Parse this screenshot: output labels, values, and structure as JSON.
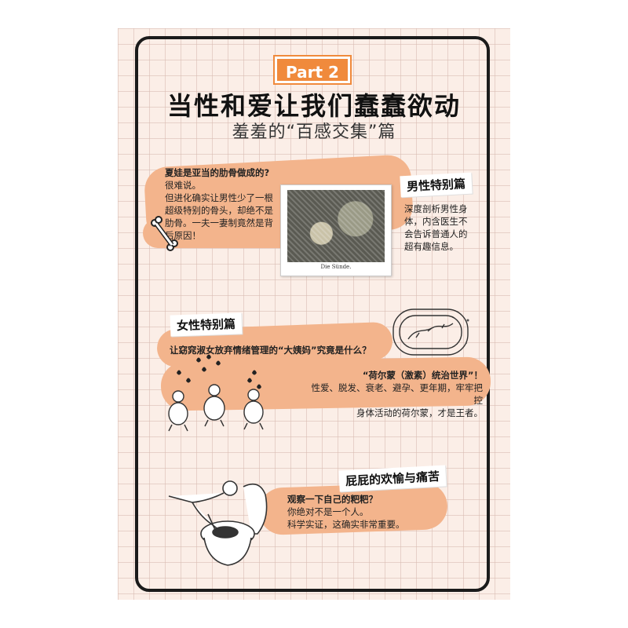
{
  "part_badge": "Part 2",
  "title": "当性和爱让我们蠢蠢欲动",
  "subtitle": "羞羞的“百感交集”篇",
  "section1": {
    "question": "夏娃是亚当的肋骨做成的?",
    "lines": [
      "很难说。",
      "但进化确实让男性少了一根",
      "超级特别的骨头，却绝不是",
      "肋骨。一夫一妻制竟然是背",
      "后原因！"
    ],
    "tag": "男性特别篇",
    "desc": [
      "深度剖析男性身",
      "体，内含医生不",
      "会告诉普通人的",
      "超有趣信息。"
    ],
    "photo_caption": "Die Sünde."
  },
  "section2": {
    "tag": "女性特别篇",
    "question": "让窈窕淑女放弃情绪管理的“大姨妈”究竟是什么？",
    "heading": "“荷尔蒙（激素）统治世界”！",
    "lines": [
      "性爱、脱发、衰老、避孕、更年期，牢牢把控",
      "身体活动的荷尔蒙，才是王者。"
    ]
  },
  "section3": {
    "tag": "屁屁的欢愉与痛苦",
    "question": "观察一下自己的粑粑？",
    "lines": [
      "你绝对不是一个人。",
      "科学实证，这确实非常重要。"
    ]
  },
  "colors": {
    "accent": "#f08a3c",
    "blob": "#f3b48c",
    "paper": "#fbeee7"
  }
}
